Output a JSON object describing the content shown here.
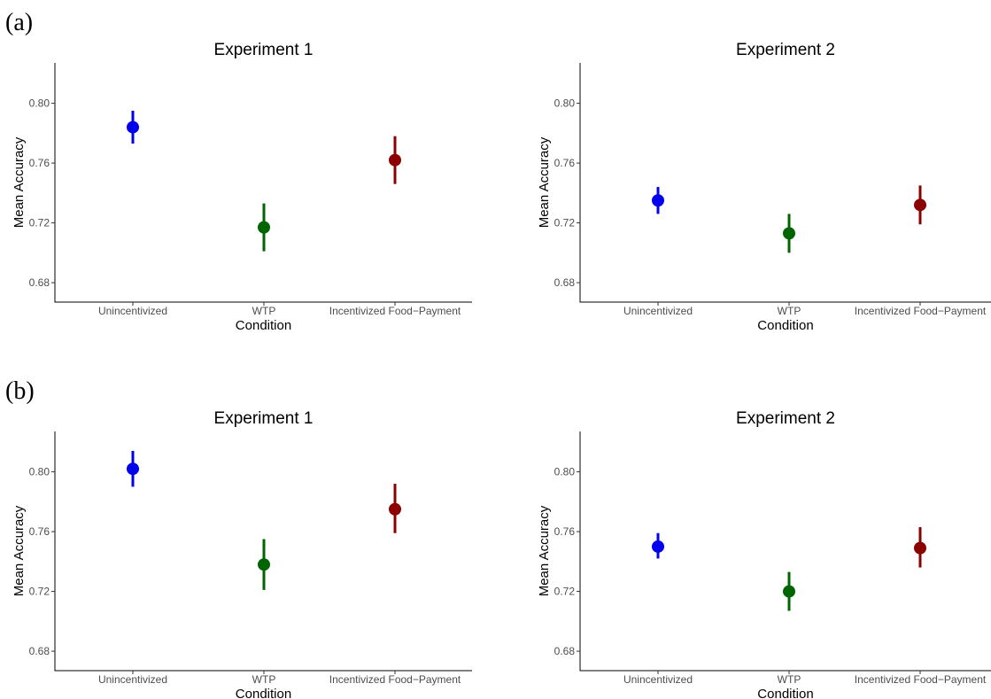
{
  "panels": [
    {
      "label": "(a)"
    },
    {
      "label": "(b)"
    }
  ],
  "chart_data": [
    {
      "type": "scatter",
      "panel": "(a)",
      "title": "Experiment 1",
      "xlabel": "Condition",
      "ylabel": "Mean Accuracy",
      "categories": [
        "Unincentivized",
        "WTP",
        "Incentivized Food−Payment"
      ],
      "yticks": [
        "0.68",
        "0.72",
        "0.76",
        "0.80"
      ],
      "ylim": [
        0.667,
        0.827
      ],
      "grid": false,
      "colors": [
        "#0000ee",
        "#006400",
        "#8b0000"
      ],
      "values": [
        0.784,
        0.717,
        0.762
      ],
      "lower": [
        0.773,
        0.701,
        0.746
      ],
      "upper": [
        0.795,
        0.733,
        0.778
      ]
    },
    {
      "type": "scatter",
      "panel": "(a)",
      "title": "Experiment 2",
      "xlabel": "Condition",
      "ylabel": "Mean Accuracy",
      "categories": [
        "Unincentivized",
        "WTP",
        "Incentivized Food−Payment"
      ],
      "yticks": [
        "0.68",
        "0.72",
        "0.76",
        "0.80"
      ],
      "ylim": [
        0.667,
        0.827
      ],
      "grid": false,
      "colors": [
        "#0000ee",
        "#006400",
        "#8b0000"
      ],
      "values": [
        0.735,
        0.713,
        0.732
      ],
      "lower": [
        0.726,
        0.7,
        0.719
      ],
      "upper": [
        0.744,
        0.726,
        0.745
      ]
    },
    {
      "type": "scatter",
      "panel": "(b)",
      "title": "Experiment 1",
      "xlabel": "Condition",
      "ylabel": "Mean Accuracy",
      "categories": [
        "Unincentivized",
        "WTP",
        "Incentivized Food−Payment"
      ],
      "yticks": [
        "0.68",
        "0.72",
        "0.76",
        "0.80"
      ],
      "ylim": [
        0.667,
        0.827
      ],
      "grid": false,
      "colors": [
        "#0000ee",
        "#006400",
        "#8b0000"
      ],
      "values": [
        0.802,
        0.738,
        0.775
      ],
      "lower": [
        0.79,
        0.721,
        0.759
      ],
      "upper": [
        0.814,
        0.755,
        0.792
      ]
    },
    {
      "type": "scatter",
      "panel": "(b)",
      "title": "Experiment 2",
      "xlabel": "Condition",
      "ylabel": "Mean Accuracy",
      "categories": [
        "Unincentivized",
        "WTP",
        "Incentivized Food−Payment"
      ],
      "yticks": [
        "0.68",
        "0.72",
        "0.76",
        "0.80"
      ],
      "ylim": [
        0.667,
        0.827
      ],
      "grid": false,
      "colors": [
        "#0000ee",
        "#006400",
        "#8b0000"
      ],
      "values": [
        0.75,
        0.72,
        0.749
      ],
      "lower": [
        0.742,
        0.707,
        0.736
      ],
      "upper": [
        0.759,
        0.733,
        0.763
      ]
    }
  ]
}
